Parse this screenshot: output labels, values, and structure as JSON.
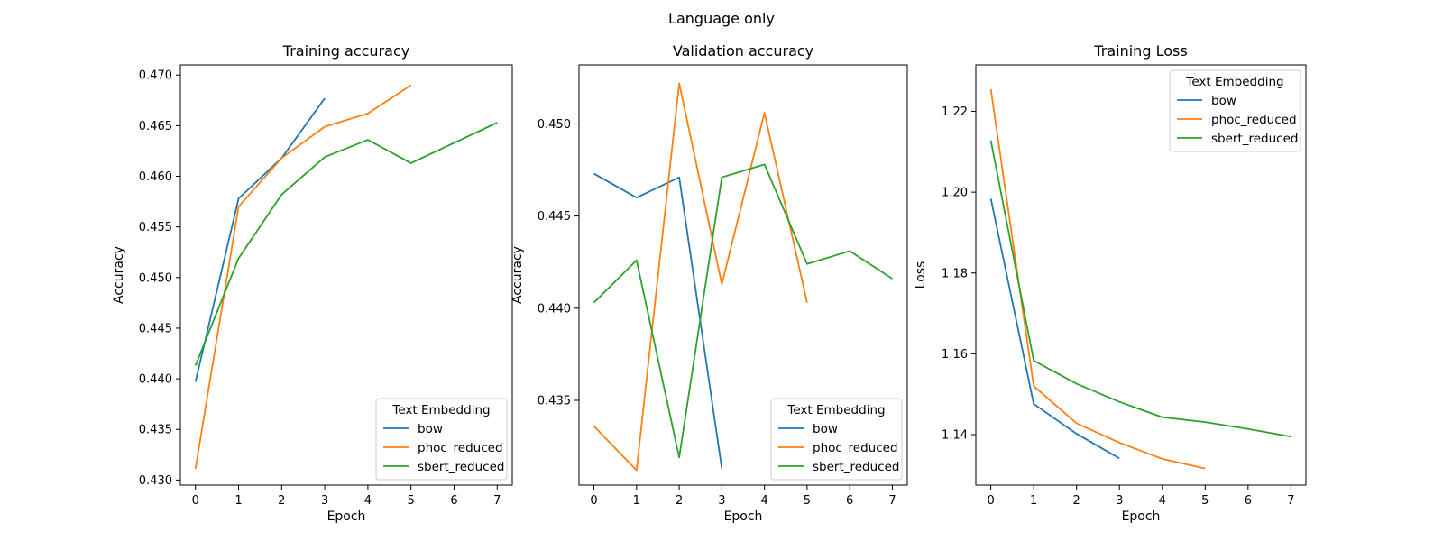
{
  "figure": {
    "suptitle": "Language only"
  },
  "colors": {
    "bow": "#1f77b4",
    "phoc_reduced": "#ff7f0e",
    "sbert_reduced": "#2ca02c"
  },
  "chart_data": [
    {
      "type": "line",
      "title": "Training accuracy",
      "xlabel": "Epoch",
      "ylabel": "Accuracy",
      "xlim": [
        -0.35,
        7.35
      ],
      "ylim": [
        0.4295,
        0.471
      ],
      "xticks": [
        0,
        1,
        2,
        3,
        4,
        5,
        6,
        7
      ],
      "yticks": [
        "0.430",
        "0.435",
        "0.440",
        "0.445",
        "0.450",
        "0.455",
        "0.460",
        "0.465",
        "0.470"
      ],
      "legend": {
        "title": "Text Embedding",
        "loc": "lower right"
      },
      "series": [
        {
          "name": "bow",
          "x": [
            0,
            1,
            2,
            3
          ],
          "y": [
            0.4397,
            0.4578,
            0.4618,
            0.4677
          ]
        },
        {
          "name": "phoc_reduced",
          "x": [
            0,
            1,
            2,
            3,
            4,
            5
          ],
          "y": [
            0.4311,
            0.457,
            0.4618,
            0.4649,
            0.4662,
            0.469
          ]
        },
        {
          "name": "sbert_reduced",
          "x": [
            0,
            1,
            2,
            3,
            4,
            5,
            6,
            7
          ],
          "y": [
            0.4413,
            0.4519,
            0.4582,
            0.4619,
            0.4636,
            0.4613,
            0.4633,
            0.4653
          ]
        }
      ]
    },
    {
      "type": "line",
      "title": "Validation accuracy",
      "xlabel": "Epoch",
      "ylabel": "Accuracy",
      "xlim": [
        -0.35,
        7.35
      ],
      "ylim": [
        0.4304,
        0.4532
      ],
      "xticks": [
        0,
        1,
        2,
        3,
        4,
        5,
        6,
        7
      ],
      "yticks": [
        "0.435",
        "0.440",
        "0.445",
        "0.450"
      ],
      "legend": {
        "title": "Text Embedding",
        "loc": "lower right"
      },
      "series": [
        {
          "name": "bow",
          "x": [
            0,
            1,
            2,
            3
          ],
          "y": [
            0.4473,
            0.446,
            0.4471,
            0.4313
          ]
        },
        {
          "name": "phoc_reduced",
          "x": [
            0,
            1,
            2,
            3,
            4,
            5
          ],
          "y": [
            0.4336,
            0.4312,
            0.4522,
            0.4413,
            0.4506,
            0.4403
          ]
        },
        {
          "name": "sbert_reduced",
          "x": [
            0,
            1,
            2,
            3,
            4,
            5,
            6,
            7
          ],
          "y": [
            0.4403,
            0.4426,
            0.4319,
            0.4471,
            0.4478,
            0.4424,
            0.4431,
            0.4416
          ]
        }
      ]
    },
    {
      "type": "line",
      "title": "Training Loss",
      "xlabel": "Epoch",
      "ylabel": "Loss",
      "xlim": [
        -0.35,
        7.35
      ],
      "ylim": [
        1.1275,
        1.2315
      ],
      "xticks": [
        0,
        1,
        2,
        3,
        4,
        5,
        6,
        7
      ],
      "yticks": [
        "1.14",
        "1.16",
        "1.18",
        "1.20",
        "1.22"
      ],
      "legend": {
        "title": "Text Embedding",
        "loc": "upper right"
      },
      "series": [
        {
          "name": "bow",
          "x": [
            0,
            1,
            2,
            3
          ],
          "y": [
            1.1984,
            1.1476,
            1.1402,
            1.1341
          ]
        },
        {
          "name": "phoc_reduced",
          "x": [
            0,
            1,
            2,
            3,
            4,
            5
          ],
          "y": [
            1.2255,
            1.152,
            1.1428,
            1.138,
            1.134,
            1.1316
          ]
        },
        {
          "name": "sbert_reduced",
          "x": [
            0,
            1,
            2,
            3,
            4,
            5,
            6,
            7
          ],
          "y": [
            1.2128,
            1.1583,
            1.1526,
            1.1481,
            1.1443,
            1.1431,
            1.1414,
            1.1395
          ]
        }
      ]
    }
  ]
}
